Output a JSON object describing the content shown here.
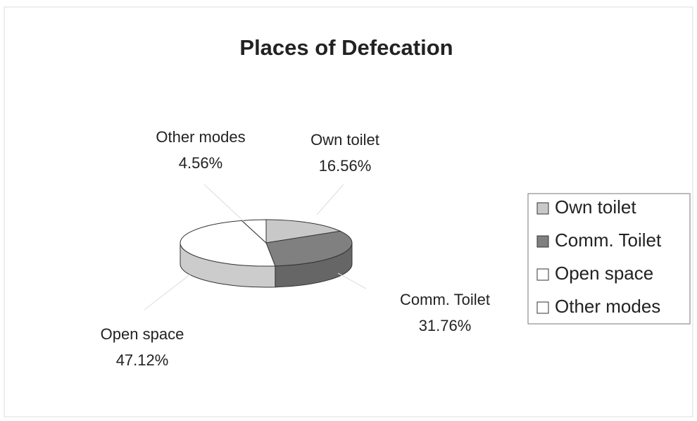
{
  "chart_data": {
    "type": "pie",
    "title": "Places of Defecation",
    "categories": [
      "Own toilet",
      "Comm. Toilet",
      "Open space",
      "Other modes"
    ],
    "values": [
      16.56,
      31.76,
      47.12,
      4.56
    ],
    "value_labels": [
      "16.56%",
      "31.76%",
      "47.12%",
      "4.56%"
    ],
    "colors": [
      "#c8c8c8",
      "#808080",
      "#ffffff",
      "#ffffff"
    ],
    "legend": "right"
  }
}
